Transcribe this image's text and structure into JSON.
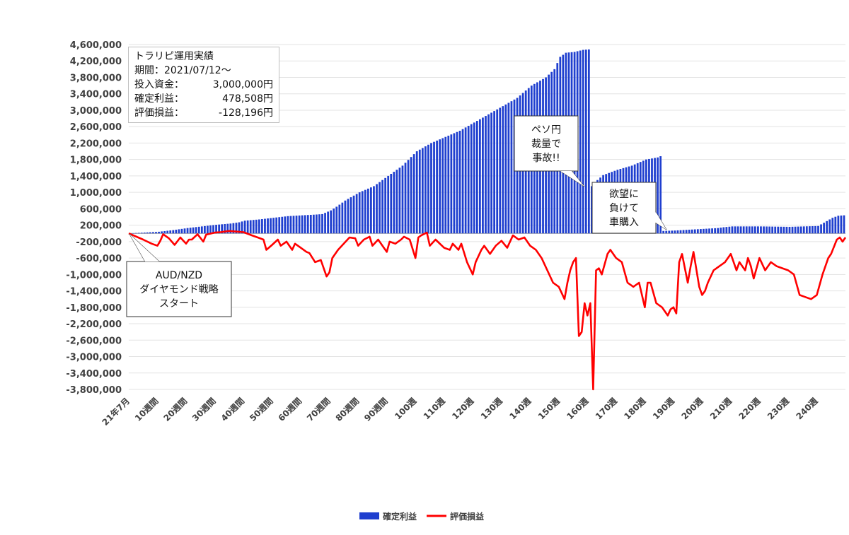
{
  "chart_data": {
    "type": "bar+line",
    "title": "",
    "xlabel": "",
    "ylabel": "",
    "ylim": [
      -3800000,
      4600000
    ],
    "y_ticks": [
      4600000,
      4200000,
      3800000,
      3400000,
      3000000,
      2600000,
      2200000,
      1800000,
      1400000,
      1000000,
      600000,
      200000,
      -200000,
      -600000,
      -1000000,
      -1400000,
      -1800000,
      -2200000,
      -2600000,
      -3000000,
      -3400000,
      -3800000
    ],
    "y_tick_labels": [
      "4,600,000",
      "4,200,000",
      "3,800,000",
      "3,400,000",
      "3,000,000",
      "2,600,000",
      "2,200,000",
      "1,800,000",
      "1,400,000",
      "1,000,000",
      "600,000",
      "200,000",
      "-200,000",
      "-600,000",
      "-1,000,000",
      "-1,400,000",
      "-1,800,000",
      "-2,200,000",
      "-2,600,000",
      "-3,000,000",
      "-3,400,000",
      "-3,800,000"
    ],
    "x_ticks": [
      {
        "week": 0,
        "label": "21年7月"
      },
      {
        "week": 10,
        "label": "10週間"
      },
      {
        "week": 20,
        "label": "20週間"
      },
      {
        "week": 30,
        "label": "30週間"
      },
      {
        "week": 40,
        "label": "40週間"
      },
      {
        "week": 50,
        "label": "50週間"
      },
      {
        "week": 60,
        "label": "60週間"
      },
      {
        "week": 70,
        "label": "70週間"
      },
      {
        "week": 80,
        "label": "80週間"
      },
      {
        "week": 90,
        "label": "90週間"
      },
      {
        "week": 100,
        "label": "100週"
      },
      {
        "week": 110,
        "label": "110週"
      },
      {
        "week": 120,
        "label": "120週"
      },
      {
        "week": 130,
        "label": "130週"
      },
      {
        "week": 140,
        "label": "140週"
      },
      {
        "week": 150,
        "label": "150週"
      },
      {
        "week": 160,
        "label": "160週"
      },
      {
        "week": 170,
        "label": "170週"
      },
      {
        "week": 180,
        "label": "180週"
      },
      {
        "week": 190,
        "label": "190週"
      },
      {
        "week": 200,
        "label": "200週"
      },
      {
        "week": 210,
        "label": "210週"
      },
      {
        "week": 220,
        "label": "220週"
      },
      {
        "week": 230,
        "label": "230週"
      },
      {
        "week": 240,
        "label": "240週"
      }
    ],
    "week_count": 250,
    "series": [
      {
        "name": "確定利益",
        "type": "bar",
        "color": "#1f3fcf",
        "anchors": [
          [
            0,
            0
          ],
          [
            2,
            10000
          ],
          [
            5,
            20000
          ],
          [
            10,
            40000
          ],
          [
            15,
            80000
          ],
          [
            20,
            130000
          ],
          [
            25,
            170000
          ],
          [
            30,
            210000
          ],
          [
            35,
            240000
          ],
          [
            38,
            270000
          ],
          [
            40,
            310000
          ],
          [
            45,
            340000
          ],
          [
            50,
            380000
          ],
          [
            55,
            420000
          ],
          [
            60,
            440000
          ],
          [
            65,
            460000
          ],
          [
            67,
            470000
          ],
          [
            70,
            560000
          ],
          [
            72,
            650000
          ],
          [
            75,
            800000
          ],
          [
            80,
            1000000
          ],
          [
            85,
            1150000
          ],
          [
            90,
            1400000
          ],
          [
            95,
            1650000
          ],
          [
            100,
            2000000
          ],
          [
            105,
            2200000
          ],
          [
            110,
            2350000
          ],
          [
            115,
            2500000
          ],
          [
            120,
            2700000
          ],
          [
            125,
            2900000
          ],
          [
            130,
            3100000
          ],
          [
            135,
            3300000
          ],
          [
            140,
            3600000
          ],
          [
            145,
            3800000
          ],
          [
            148,
            4000000
          ],
          [
            150,
            4300000
          ],
          [
            152,
            4400000
          ],
          [
            155,
            4420000
          ],
          [
            158,
            4470000
          ],
          [
            160,
            4480000
          ],
          [
            161,
            1150000
          ],
          [
            163,
            1300000
          ],
          [
            165,
            1420000
          ],
          [
            170,
            1550000
          ],
          [
            175,
            1650000
          ],
          [
            180,
            1800000
          ],
          [
            184,
            1850000
          ],
          [
            185,
            1880000
          ],
          [
            186,
            60000
          ],
          [
            190,
            70000
          ],
          [
            195,
            90000
          ],
          [
            200,
            110000
          ],
          [
            205,
            130000
          ],
          [
            207,
            150000
          ],
          [
            210,
            170000
          ],
          [
            220,
            170000
          ],
          [
            230,
            160000
          ],
          [
            240,
            180000
          ],
          [
            243,
            300000
          ],
          [
            245,
            380000
          ],
          [
            247,
            430000
          ],
          [
            249,
            440000
          ]
        ]
      },
      {
        "name": "評価損益",
        "type": "line",
        "color": "#ff0000",
        "anchors": [
          [
            0,
            0
          ],
          [
            5,
            -150000
          ],
          [
            8,
            -250000
          ],
          [
            10,
            -300000
          ],
          [
            11,
            -180000
          ],
          [
            12,
            -20000
          ],
          [
            14,
            -120000
          ],
          [
            16,
            -280000
          ],
          [
            18,
            -100000
          ],
          [
            20,
            -250000
          ],
          [
            21,
            -150000
          ],
          [
            22,
            -150000
          ],
          [
            24,
            -20000
          ],
          [
            26,
            -200000
          ],
          [
            27,
            -30000
          ],
          [
            30,
            20000
          ],
          [
            32,
            30000
          ],
          [
            35,
            60000
          ],
          [
            40,
            30000
          ],
          [
            43,
            -50000
          ],
          [
            45,
            -100000
          ],
          [
            47,
            -150000
          ],
          [
            48,
            -400000
          ],
          [
            50,
            -280000
          ],
          [
            52,
            -150000
          ],
          [
            53,
            -300000
          ],
          [
            55,
            -200000
          ],
          [
            57,
            -400000
          ],
          [
            58,
            -250000
          ],
          [
            60,
            -350000
          ],
          [
            62,
            -450000
          ],
          [
            63,
            -480000
          ],
          [
            65,
            -700000
          ],
          [
            67,
            -650000
          ],
          [
            69,
            -1050000
          ],
          [
            70,
            -950000
          ],
          [
            71,
            -600000
          ],
          [
            73,
            -400000
          ],
          [
            75,
            -250000
          ],
          [
            77,
            -100000
          ],
          [
            79,
            -120000
          ],
          [
            80,
            -300000
          ],
          [
            82,
            -150000
          ],
          [
            84,
            -80000
          ],
          [
            85,
            -300000
          ],
          [
            87,
            -150000
          ],
          [
            89,
            -350000
          ],
          [
            90,
            -450000
          ],
          [
            91,
            -200000
          ],
          [
            93,
            -250000
          ],
          [
            95,
            -150000
          ],
          [
            96,
            -80000
          ],
          [
            98,
            -150000
          ],
          [
            100,
            -600000
          ],
          [
            101,
            -100000
          ],
          [
            102,
            -50000
          ],
          [
            104,
            20000
          ],
          [
            105,
            -300000
          ],
          [
            107,
            -150000
          ],
          [
            110,
            -350000
          ],
          [
            112,
            -400000
          ],
          [
            113,
            -250000
          ],
          [
            115,
            -400000
          ],
          [
            116,
            -250000
          ],
          [
            118,
            -700000
          ],
          [
            120,
            -1000000
          ],
          [
            121,
            -700000
          ],
          [
            123,
            -400000
          ],
          [
            124,
            -300000
          ],
          [
            126,
            -500000
          ],
          [
            128,
            -300000
          ],
          [
            130,
            -180000
          ],
          [
            132,
            -350000
          ],
          [
            134,
            -50000
          ],
          [
            136,
            -150000
          ],
          [
            138,
            -100000
          ],
          [
            140,
            -300000
          ],
          [
            142,
            -400000
          ],
          [
            144,
            -600000
          ],
          [
            146,
            -900000
          ],
          [
            148,
            -1200000
          ],
          [
            150,
            -1300000
          ],
          [
            152,
            -1600000
          ],
          [
            153,
            -1200000
          ],
          [
            154,
            -900000
          ],
          [
            155,
            -700000
          ],
          [
            156,
            -600000
          ],
          [
            157,
            -2500000
          ],
          [
            158,
            -2400000
          ],
          [
            159,
            -1700000
          ],
          [
            160,
            -2000000
          ],
          [
            161,
            -1700000
          ],
          [
            162,
            -3800000
          ],
          [
            163,
            -900000
          ],
          [
            164,
            -850000
          ],
          [
            165,
            -1000000
          ],
          [
            167,
            -500000
          ],
          [
            168,
            -400000
          ],
          [
            170,
            -600000
          ],
          [
            172,
            -700000
          ],
          [
            174,
            -1200000
          ],
          [
            176,
            -1300000
          ],
          [
            178,
            -1200000
          ],
          [
            180,
            -1800000
          ],
          [
            181,
            -1200000
          ],
          [
            182,
            -1200000
          ],
          [
            184,
            -1700000
          ],
          [
            186,
            -1800000
          ],
          [
            188,
            -2000000
          ],
          [
            189,
            -1850000
          ],
          [
            190,
            -1800000
          ],
          [
            191,
            -1950000
          ],
          [
            192,
            -700000
          ],
          [
            193,
            -500000
          ],
          [
            195,
            -1200000
          ],
          [
            196,
            -800000
          ],
          [
            197,
            -450000
          ],
          [
            199,
            -1300000
          ],
          [
            200,
            -1500000
          ],
          [
            201,
            -1400000
          ],
          [
            202,
            -1200000
          ],
          [
            204,
            -900000
          ],
          [
            206,
            -800000
          ],
          [
            208,
            -700000
          ],
          [
            210,
            -500000
          ],
          [
            212,
            -900000
          ],
          [
            213,
            -700000
          ],
          [
            215,
            -900000
          ],
          [
            216,
            -600000
          ],
          [
            217,
            -800000
          ],
          [
            218,
            -1100000
          ],
          [
            220,
            -600000
          ],
          [
            222,
            -900000
          ],
          [
            224,
            -700000
          ],
          [
            226,
            -800000
          ],
          [
            228,
            -850000
          ],
          [
            230,
            -900000
          ],
          [
            232,
            -1000000
          ],
          [
            234,
            -1500000
          ],
          [
            236,
            -1550000
          ],
          [
            238,
            -1600000
          ],
          [
            240,
            -1500000
          ],
          [
            242,
            -1000000
          ],
          [
            244,
            -600000
          ],
          [
            245,
            -500000
          ],
          [
            247,
            -150000
          ],
          [
            248,
            -100000
          ],
          [
            249,
            -200000
          ],
          [
            250,
            -100000
          ]
        ]
      }
    ],
    "legend": [
      {
        "label": "確定利益",
        "color": "#1f3fcf"
      },
      {
        "label": "評価損益",
        "color": "#ff0000"
      }
    ],
    "legend_position": "bottom",
    "grid": true,
    "annotations": [
      {
        "lines": [
          "AUD/NZD",
          "ダイヤモンド戦略",
          "スタート"
        ]
      },
      {
        "lines": [
          "ペソ円",
          "裁量で",
          "事故!!"
        ]
      },
      {
        "lines": [
          "欲望に",
          "負けて",
          "車購入"
        ]
      }
    ]
  },
  "info_box": {
    "title": "トラリピ運用実績",
    "period": "期間：2021/07/12～",
    "rows": [
      {
        "label": "投入資金：",
        "value": "3,000,000円"
      },
      {
        "label": "確定利益：",
        "value": "478,508円"
      },
      {
        "label": "評価損益：",
        "value": "-128,196円"
      }
    ]
  }
}
